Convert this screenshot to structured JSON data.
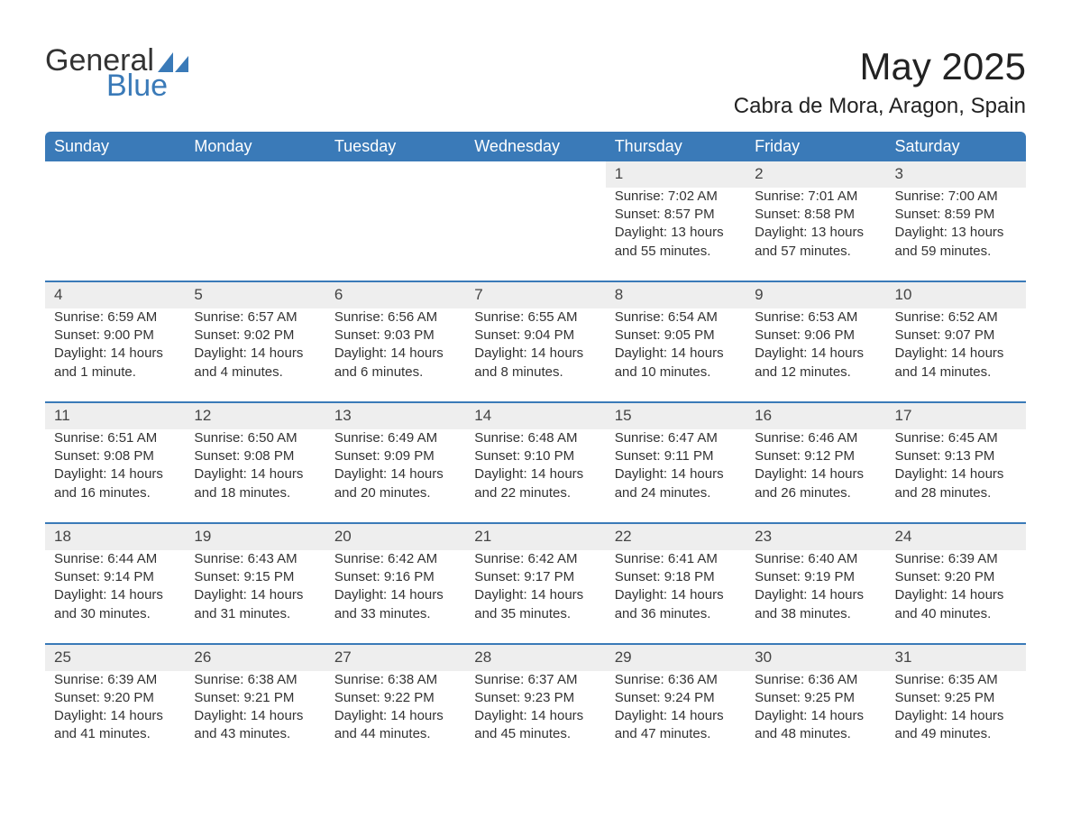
{
  "brand": {
    "name_part1": "General",
    "name_part2": "Blue",
    "color_primary": "#3a7ab8",
    "color_text": "#333333"
  },
  "header": {
    "month_title": "May 2025",
    "location": "Cabra de Mora, Aragon, Spain"
  },
  "calendar": {
    "type": "table",
    "header_bg": "#3a7ab8",
    "header_text_color": "#ffffff",
    "daynum_bg": "#eeeeee",
    "row_divider_color": "#3a7ab8",
    "body_bg": "#ffffff",
    "text_color": "#333333",
    "font_size_header": 18,
    "font_size_daynum": 17,
    "font_size_body": 15,
    "day_headers": [
      "Sunday",
      "Monday",
      "Tuesday",
      "Wednesday",
      "Thursday",
      "Friday",
      "Saturday"
    ],
    "weeks": [
      [
        null,
        null,
        null,
        null,
        {
          "n": "1",
          "sr": "Sunrise: 7:02 AM",
          "ss": "Sunset: 8:57 PM",
          "d1": "Daylight: 13 hours",
          "d2": "and 55 minutes."
        },
        {
          "n": "2",
          "sr": "Sunrise: 7:01 AM",
          "ss": "Sunset: 8:58 PM",
          "d1": "Daylight: 13 hours",
          "d2": "and 57 minutes."
        },
        {
          "n": "3",
          "sr": "Sunrise: 7:00 AM",
          "ss": "Sunset: 8:59 PM",
          "d1": "Daylight: 13 hours",
          "d2": "and 59 minutes."
        }
      ],
      [
        {
          "n": "4",
          "sr": "Sunrise: 6:59 AM",
          "ss": "Sunset: 9:00 PM",
          "d1": "Daylight: 14 hours",
          "d2": "and 1 minute."
        },
        {
          "n": "5",
          "sr": "Sunrise: 6:57 AM",
          "ss": "Sunset: 9:02 PM",
          "d1": "Daylight: 14 hours",
          "d2": "and 4 minutes."
        },
        {
          "n": "6",
          "sr": "Sunrise: 6:56 AM",
          "ss": "Sunset: 9:03 PM",
          "d1": "Daylight: 14 hours",
          "d2": "and 6 minutes."
        },
        {
          "n": "7",
          "sr": "Sunrise: 6:55 AM",
          "ss": "Sunset: 9:04 PM",
          "d1": "Daylight: 14 hours",
          "d2": "and 8 minutes."
        },
        {
          "n": "8",
          "sr": "Sunrise: 6:54 AM",
          "ss": "Sunset: 9:05 PM",
          "d1": "Daylight: 14 hours",
          "d2": "and 10 minutes."
        },
        {
          "n": "9",
          "sr": "Sunrise: 6:53 AM",
          "ss": "Sunset: 9:06 PM",
          "d1": "Daylight: 14 hours",
          "d2": "and 12 minutes."
        },
        {
          "n": "10",
          "sr": "Sunrise: 6:52 AM",
          "ss": "Sunset: 9:07 PM",
          "d1": "Daylight: 14 hours",
          "d2": "and 14 minutes."
        }
      ],
      [
        {
          "n": "11",
          "sr": "Sunrise: 6:51 AM",
          "ss": "Sunset: 9:08 PM",
          "d1": "Daylight: 14 hours",
          "d2": "and 16 minutes."
        },
        {
          "n": "12",
          "sr": "Sunrise: 6:50 AM",
          "ss": "Sunset: 9:08 PM",
          "d1": "Daylight: 14 hours",
          "d2": "and 18 minutes."
        },
        {
          "n": "13",
          "sr": "Sunrise: 6:49 AM",
          "ss": "Sunset: 9:09 PM",
          "d1": "Daylight: 14 hours",
          "d2": "and 20 minutes."
        },
        {
          "n": "14",
          "sr": "Sunrise: 6:48 AM",
          "ss": "Sunset: 9:10 PM",
          "d1": "Daylight: 14 hours",
          "d2": "and 22 minutes."
        },
        {
          "n": "15",
          "sr": "Sunrise: 6:47 AM",
          "ss": "Sunset: 9:11 PM",
          "d1": "Daylight: 14 hours",
          "d2": "and 24 minutes."
        },
        {
          "n": "16",
          "sr": "Sunrise: 6:46 AM",
          "ss": "Sunset: 9:12 PM",
          "d1": "Daylight: 14 hours",
          "d2": "and 26 minutes."
        },
        {
          "n": "17",
          "sr": "Sunrise: 6:45 AM",
          "ss": "Sunset: 9:13 PM",
          "d1": "Daylight: 14 hours",
          "d2": "and 28 minutes."
        }
      ],
      [
        {
          "n": "18",
          "sr": "Sunrise: 6:44 AM",
          "ss": "Sunset: 9:14 PM",
          "d1": "Daylight: 14 hours",
          "d2": "and 30 minutes."
        },
        {
          "n": "19",
          "sr": "Sunrise: 6:43 AM",
          "ss": "Sunset: 9:15 PM",
          "d1": "Daylight: 14 hours",
          "d2": "and 31 minutes."
        },
        {
          "n": "20",
          "sr": "Sunrise: 6:42 AM",
          "ss": "Sunset: 9:16 PM",
          "d1": "Daylight: 14 hours",
          "d2": "and 33 minutes."
        },
        {
          "n": "21",
          "sr": "Sunrise: 6:42 AM",
          "ss": "Sunset: 9:17 PM",
          "d1": "Daylight: 14 hours",
          "d2": "and 35 minutes."
        },
        {
          "n": "22",
          "sr": "Sunrise: 6:41 AM",
          "ss": "Sunset: 9:18 PM",
          "d1": "Daylight: 14 hours",
          "d2": "and 36 minutes."
        },
        {
          "n": "23",
          "sr": "Sunrise: 6:40 AM",
          "ss": "Sunset: 9:19 PM",
          "d1": "Daylight: 14 hours",
          "d2": "and 38 minutes."
        },
        {
          "n": "24",
          "sr": "Sunrise: 6:39 AM",
          "ss": "Sunset: 9:20 PM",
          "d1": "Daylight: 14 hours",
          "d2": "and 40 minutes."
        }
      ],
      [
        {
          "n": "25",
          "sr": "Sunrise: 6:39 AM",
          "ss": "Sunset: 9:20 PM",
          "d1": "Daylight: 14 hours",
          "d2": "and 41 minutes."
        },
        {
          "n": "26",
          "sr": "Sunrise: 6:38 AM",
          "ss": "Sunset: 9:21 PM",
          "d1": "Daylight: 14 hours",
          "d2": "and 43 minutes."
        },
        {
          "n": "27",
          "sr": "Sunrise: 6:38 AM",
          "ss": "Sunset: 9:22 PM",
          "d1": "Daylight: 14 hours",
          "d2": "and 44 minutes."
        },
        {
          "n": "28",
          "sr": "Sunrise: 6:37 AM",
          "ss": "Sunset: 9:23 PM",
          "d1": "Daylight: 14 hours",
          "d2": "and 45 minutes."
        },
        {
          "n": "29",
          "sr": "Sunrise: 6:36 AM",
          "ss": "Sunset: 9:24 PM",
          "d1": "Daylight: 14 hours",
          "d2": "and 47 minutes."
        },
        {
          "n": "30",
          "sr": "Sunrise: 6:36 AM",
          "ss": "Sunset: 9:25 PM",
          "d1": "Daylight: 14 hours",
          "d2": "and 48 minutes."
        },
        {
          "n": "31",
          "sr": "Sunrise: 6:35 AM",
          "ss": "Sunset: 9:25 PM",
          "d1": "Daylight: 14 hours",
          "d2": "and 49 minutes."
        }
      ]
    ]
  }
}
